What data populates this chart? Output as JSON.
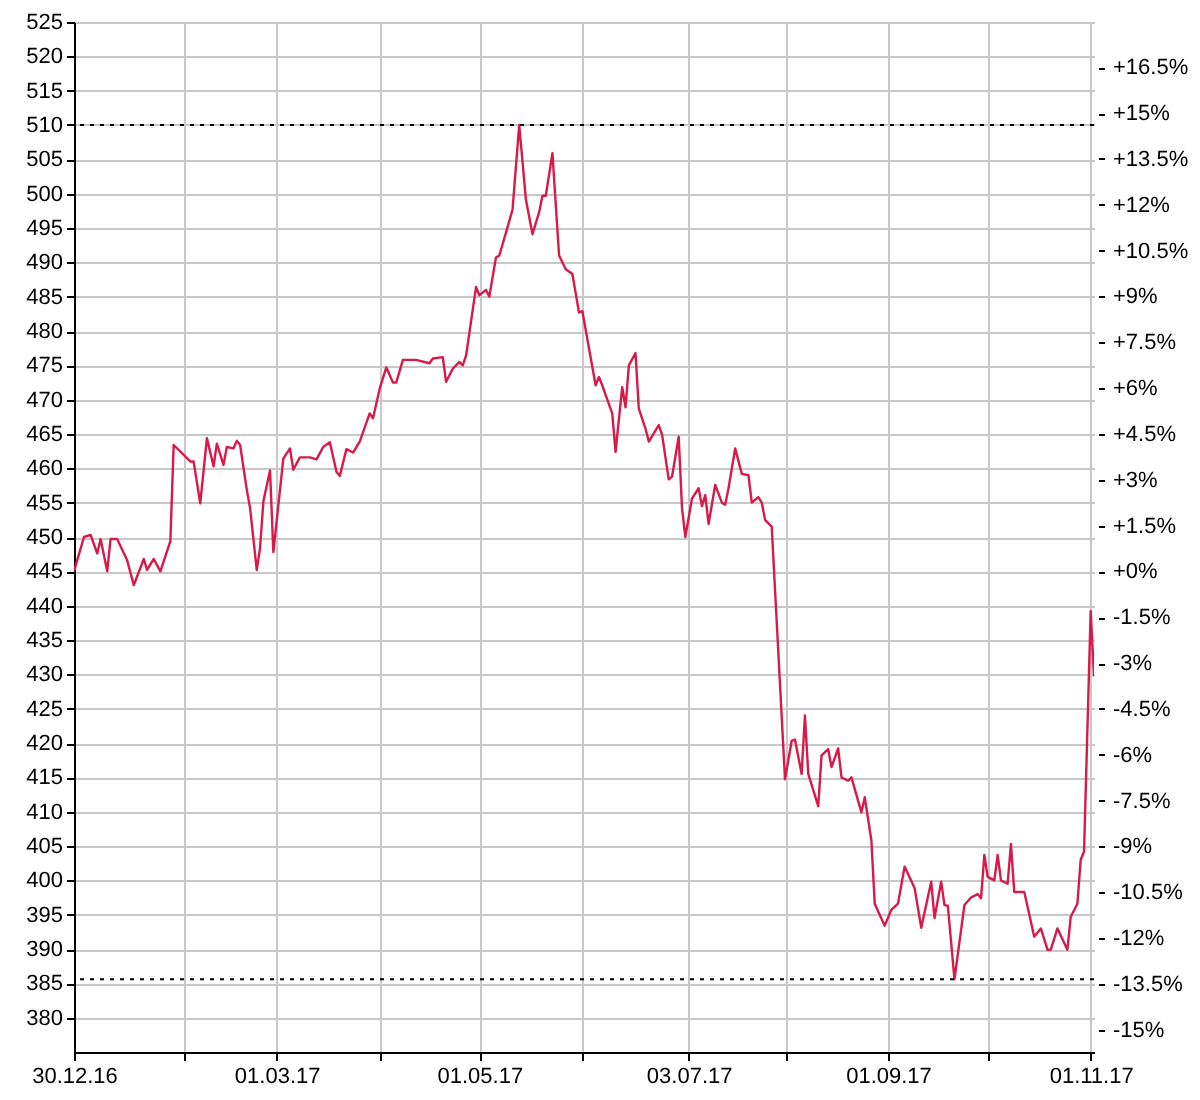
{
  "chart_data": {
    "type": "line",
    "x": [
      "2016-12-30",
      "2017-01-02",
      "2017-01-04",
      "2017-01-06",
      "2017-01-07",
      "2017-01-09",
      "2017-01-10",
      "2017-01-12",
      "2017-01-15",
      "2017-01-17",
      "2017-01-20",
      "2017-01-21",
      "2017-01-23",
      "2017-01-25",
      "2017-01-28",
      "2017-01-29",
      "2017-02-03",
      "2017-02-04",
      "2017-02-06",
      "2017-02-08",
      "2017-02-10",
      "2017-02-11",
      "2017-02-13",
      "2017-02-14",
      "2017-02-16",
      "2017-02-17",
      "2017-02-18",
      "2017-02-20",
      "2017-02-21",
      "2017-02-23",
      "2017-02-24",
      "2017-02-25",
      "2017-02-27",
      "2017-02-28",
      "2017-03-03",
      "2017-03-05",
      "2017-03-06",
      "2017-03-08",
      "2017-03-11",
      "2017-03-13",
      "2017-03-15",
      "2017-03-17",
      "2017-03-19",
      "2017-03-20",
      "2017-03-22",
      "2017-03-24",
      "2017-03-26",
      "2017-03-29",
      "2017-03-30",
      "2017-04-01",
      "2017-04-03",
      "2017-04-05",
      "2017-04-06",
      "2017-04-08",
      "2017-04-12",
      "2017-04-16",
      "2017-04-17",
      "2017-04-20",
      "2017-04-21",
      "2017-04-23",
      "2017-04-25",
      "2017-04-26",
      "2017-04-27",
      "2017-04-30",
      "2017-05-01",
      "2017-05-03",
      "2017-05-04",
      "2017-05-06",
      "2017-05-07",
      "2017-05-09",
      "2017-05-11",
      "2017-05-13",
      "2017-05-15",
      "2017-05-17",
      "2017-05-19",
      "2017-05-20",
      "2017-05-21",
      "2017-05-23",
      "2017-05-25",
      "2017-05-27",
      "2017-05-29",
      "2017-05-31",
      "2017-06-01",
      "2017-06-05",
      "2017-06-06",
      "2017-06-07",
      "2017-06-08",
      "2017-06-10",
      "2017-06-11",
      "2017-06-13",
      "2017-06-14",
      "2017-06-15",
      "2017-06-17",
      "2017-06-18",
      "2017-06-20",
      "2017-06-21",
      "2017-06-24",
      "2017-06-25",
      "2017-06-27",
      "2017-06-28",
      "2017-06-30",
      "2017-07-01",
      "2017-07-02",
      "2017-07-04",
      "2017-07-06",
      "2017-07-07",
      "2017-07-08",
      "2017-07-09",
      "2017-07-11",
      "2017-07-13",
      "2017-07-14",
      "2017-07-15",
      "2017-07-17",
      "2017-07-19",
      "2017-07-21",
      "2017-07-22",
      "2017-07-24",
      "2017-07-25",
      "2017-07-26",
      "2017-07-28",
      "2017-08-01",
      "2017-08-03",
      "2017-08-04",
      "2017-08-06",
      "2017-08-07",
      "2017-08-08",
      "2017-08-11",
      "2017-08-12",
      "2017-08-14",
      "2017-08-15",
      "2017-08-17",
      "2017-08-18",
      "2017-08-20",
      "2017-08-21",
      "2017-08-24",
      "2017-08-25",
      "2017-08-27",
      "2017-08-28",
      "2017-08-31",
      "2017-09-02",
      "2017-09-04",
      "2017-09-06",
      "2017-09-09",
      "2017-09-11",
      "2017-09-14",
      "2017-09-15",
      "2017-09-17",
      "2017-09-18",
      "2017-09-19",
      "2017-09-21",
      "2017-09-24",
      "2017-09-26",
      "2017-09-28",
      "2017-09-29",
      "2017-09-30",
      "2017-10-01",
      "2017-10-03",
      "2017-10-04",
      "2017-10-05",
      "2017-10-07",
      "2017-10-08",
      "2017-10-09",
      "2017-10-12",
      "2017-10-13",
      "2017-10-15",
      "2017-10-17",
      "2017-10-19",
      "2017-10-20",
      "2017-10-22",
      "2017-10-25",
      "2017-10-26",
      "2017-10-28",
      "2017-10-29",
      "2017-10-30",
      "2017-11-01",
      "2017-11-02"
    ],
    "series": [
      {
        "color": "#d9194a",
        "values": [
          445,
          450,
          450.3,
          447.6,
          449.7,
          445,
          449.7,
          449.7,
          446.6,
          443,
          446.8,
          445.2,
          446.8,
          445,
          449.4,
          463.4,
          461,
          461,
          454.9,
          464.4,
          460.3,
          463.6,
          460.5,
          463.1,
          462.9,
          464,
          463.4,
          456.9,
          454.2,
          445.2,
          448.4,
          455.2,
          459.7,
          447.8,
          461.4,
          462.9,
          459.8,
          461.6,
          461.6,
          461.3,
          463.1,
          463.8,
          459.5,
          458.9,
          462.8,
          462.3,
          463.9,
          468,
          467.3,
          471.6,
          474.7,
          472.5,
          472.5,
          475.8,
          475.8,
          475.3,
          476,
          476.2,
          472.6,
          474.5,
          475.5,
          475,
          476.4,
          486.4,
          485.2,
          486,
          485,
          490.7,
          491,
          494.3,
          497.7,
          510,
          499.2,
          494.1,
          497.3,
          499.7,
          499.7,
          505.9,
          491,
          489,
          488.3,
          482.7,
          482.9,
          472.1,
          473.3,
          472.1,
          470.7,
          468,
          462.4,
          471.8,
          468.9,
          475,
          476.8,
          468.7,
          465.8,
          463.9,
          466.3,
          464.9,
          458.4,
          458.8,
          464.6,
          454.2,
          450,
          455.6,
          457.1,
          454.5,
          456.1,
          451.9,
          457.6,
          455,
          454.7,
          457.1,
          462.9,
          459.2,
          459,
          455,
          455.8,
          455,
          452.5,
          451.5,
          414.7,
          420.3,
          420.5,
          415.5,
          424,
          415.5,
          410.8,
          418.2,
          419.1,
          416.5,
          419.2,
          415,
          414.5,
          415,
          409.9,
          412.1,
          405.8,
          396.6,
          393.4,
          395.7,
          396.6,
          402,
          398.9,
          393.1,
          399.8,
          394.5,
          399.8,
          396.4,
          396.3,
          385.6,
          396.4,
          397.5,
          398,
          397.4,
          403.7,
          400.5,
          400,
          403.7,
          400,
          399.5,
          405.3,
          398.3,
          398.3,
          396.2,
          391.8,
          393,
          389.9,
          389.9,
          393,
          389.9,
          394.7,
          396.6,
          403,
          404.2,
          439.2,
          429.7
        ]
      }
    ],
    "xlim": [
      "2016-12-30",
      "2017-11-02"
    ],
    "xticks": [
      {
        "value": "2016-12-30",
        "label": "30.12.16"
      },
      {
        "value": "2017-02-01",
        "label": null
      },
      {
        "value": "2017-03-01",
        "label": "01.03.17"
      },
      {
        "value": "2017-04-01",
        "label": null
      },
      {
        "value": "2017-05-01",
        "label": "01.05.17"
      },
      {
        "value": "2017-06-01",
        "label": null
      },
      {
        "value": "2017-07-03",
        "label": "03.07.17"
      },
      {
        "value": "2017-08-01",
        "label": null
      },
      {
        "value": "2017-09-01",
        "label": "01.09.17"
      },
      {
        "value": "2017-10-01",
        "label": null
      },
      {
        "value": "2017-11-01",
        "label": "01.11.17"
      }
    ],
    "ylim": [
      375,
      525
    ],
    "yticks": [
      380,
      385,
      390,
      395,
      400,
      405,
      410,
      415,
      420,
      425,
      430,
      435,
      440,
      445,
      450,
      455,
      460,
      465,
      470,
      475,
      480,
      485,
      490,
      495,
      500,
      505,
      510,
      515,
      520,
      525
    ],
    "y2lim": [
      -15.73,
      17.98
    ],
    "y2ticks": [
      {
        "value": -15,
        "label": "-15%"
      },
      {
        "value": -13.5,
        "label": "-13.5%"
      },
      {
        "value": -12,
        "label": "-12%"
      },
      {
        "value": -10.5,
        "label": "-10.5%"
      },
      {
        "value": -9,
        "label": "-9%"
      },
      {
        "value": -7.5,
        "label": "-7.5%"
      },
      {
        "value": -6,
        "label": "-6%"
      },
      {
        "value": -4.5,
        "label": "-4.5%"
      },
      {
        "value": -3,
        "label": "-3%"
      },
      {
        "value": -1.5,
        "label": "-1.5%"
      },
      {
        "value": 0,
        "label": "+0%"
      },
      {
        "value": 1.5,
        "label": "+1.5%"
      },
      {
        "value": 3,
        "label": "+3%"
      },
      {
        "value": 4.5,
        "label": "+4.5%"
      },
      {
        "value": 6,
        "label": "+6%"
      },
      {
        "value": 7.5,
        "label": "+7.5%"
      },
      {
        "value": 9,
        "label": "+9%"
      },
      {
        "value": 10.5,
        "label": "+10.5%"
      },
      {
        "value": 12,
        "label": "+12%"
      },
      {
        "value": 13.5,
        "label": "+13.5%"
      },
      {
        "value": 15,
        "label": "+15%"
      },
      {
        "value": 16.5,
        "label": "+16.5%"
      }
    ],
    "ref_lines": [
      {
        "axis": "y",
        "value": 510,
        "color": "#000000",
        "line_style": "dotted"
      },
      {
        "axis": "y",
        "value": 385.6,
        "color": "#000000",
        "line_style": "dotted"
      }
    ],
    "grid": true
  }
}
